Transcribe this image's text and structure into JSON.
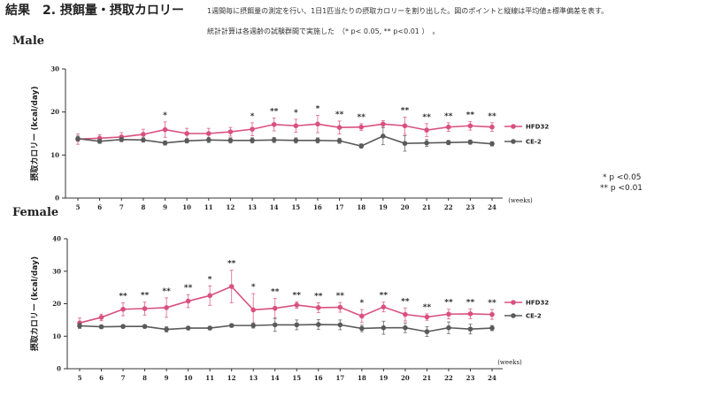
{
  "header": {
    "title": "結果　2. 摂餌量・摂取カロリー",
    "note_line1": "1週間毎に摂餌量の測定を行い、1日1匹当たりの摂取カロリーを割り出した。図のポイントと縦線は平均値±標準偏差を表す。",
    "note_line2": "統計計算は各週齢の試験群間で実施した　（* p< 0.05, ** p<0.01 ）　。"
  },
  "significance_legend": {
    "single": "*   p <0.05",
    "double": "** p <0.01"
  },
  "colors": {
    "hfd": "#d9507e",
    "ce": "#5a5a5a",
    "axis": "#333333"
  },
  "chart_data": [
    {
      "type": "line",
      "panel_label": "Male",
      "ylabel": "摂取カロリー (kcal/day)",
      "xlabel": "(weeks)",
      "x": [
        5,
        6,
        7,
        8,
        9,
        10,
        11,
        12,
        13,
        14,
        15,
        16,
        17,
        18,
        19,
        20,
        21,
        22,
        23,
        24
      ],
      "ylim": [
        0,
        30
      ],
      "yticks": [
        0,
        10,
        20,
        30
      ],
      "legend_position": "right",
      "series": [
        {
          "name": "HFD32",
          "values": [
            13.7,
            13.9,
            14.2,
            14.8,
            15.9,
            15.0,
            15.0,
            15.4,
            16.0,
            17.1,
            16.8,
            17.2,
            16.4,
            16.5,
            17.2,
            16.8,
            15.8,
            16.5,
            16.8,
            16.5
          ],
          "errors": [
            1.2,
            0.8,
            1.0,
            1.2,
            1.8,
            1.2,
            1.2,
            1.0,
            1.5,
            1.5,
            1.5,
            2.0,
            1.5,
            0.8,
            0.8,
            2.0,
            1.5,
            1.0,
            1.0,
            1.0
          ]
        },
        {
          "name": "CE-2",
          "values": [
            13.8,
            13.2,
            13.6,
            13.5,
            12.8,
            13.3,
            13.5,
            13.4,
            13.4,
            13.5,
            13.4,
            13.4,
            13.3,
            12.1,
            14.4,
            12.7,
            12.8,
            12.9,
            13.0,
            12.6
          ],
          "errors": [
            0.6,
            0.5,
            0.5,
            0.5,
            0.5,
            0.5,
            0.6,
            0.6,
            0.6,
            0.6,
            0.6,
            0.6,
            0.6,
            0.5,
            2.0,
            1.8,
            0.8,
            0.5,
            0.5,
            0.5
          ]
        }
      ],
      "significance": [
        "",
        "",
        "",
        "",
        "*",
        "",
        "",
        "",
        "*",
        "**",
        "*",
        "*",
        "**",
        "**",
        "",
        "**",
        "**",
        "**",
        "**",
        "**"
      ]
    },
    {
      "type": "line",
      "panel_label": "Female",
      "ylabel": "摂取カロリー (kcal/day)",
      "xlabel": "(weeks)",
      "x": [
        5,
        6,
        7,
        8,
        9,
        10,
        11,
        12,
        13,
        14,
        15,
        16,
        17,
        18,
        19,
        20,
        21,
        22,
        23,
        24
      ],
      "ylim": [
        0,
        40
      ],
      "yticks": [
        0,
        10,
        20,
        30,
        40
      ],
      "legend_position": "right",
      "series": [
        {
          "name": "HFD32",
          "values": [
            14.1,
            15.8,
            18.3,
            18.5,
            18.8,
            20.8,
            22.5,
            25.3,
            18.1,
            18.6,
            19.6,
            18.8,
            18.9,
            16.2,
            19.0,
            16.7,
            15.9,
            16.8,
            16.9,
            16.7
          ],
          "errors": [
            1.5,
            1.0,
            2.0,
            2.0,
            3.0,
            2.0,
            3.0,
            5.0,
            5.0,
            3.0,
            1.0,
            1.5,
            1.5,
            2.0,
            1.5,
            2.0,
            1.0,
            1.5,
            1.5,
            1.5
          ]
        },
        {
          "name": "CE-2",
          "values": [
            13.2,
            12.9,
            13.0,
            13.0,
            12.1,
            12.5,
            12.5,
            13.3,
            13.3,
            13.5,
            13.5,
            13.6,
            13.5,
            12.4,
            12.6,
            12.6,
            11.4,
            12.6,
            12.2,
            12.5
          ],
          "errors": [
            0.8,
            0.5,
            0.5,
            0.5,
            0.8,
            0.5,
            0.5,
            0.5,
            0.8,
            2.0,
            1.5,
            1.5,
            1.5,
            1.0,
            2.0,
            1.5,
            1.5,
            1.8,
            1.5,
            0.8
          ]
        }
      ],
      "significance": [
        "",
        "",
        "**",
        "**",
        "**",
        "**",
        "*",
        "**",
        "*",
        "**",
        "**",
        "**",
        "**",
        "*",
        "**",
        "**",
        "**",
        "**",
        "**",
        "**"
      ]
    }
  ]
}
